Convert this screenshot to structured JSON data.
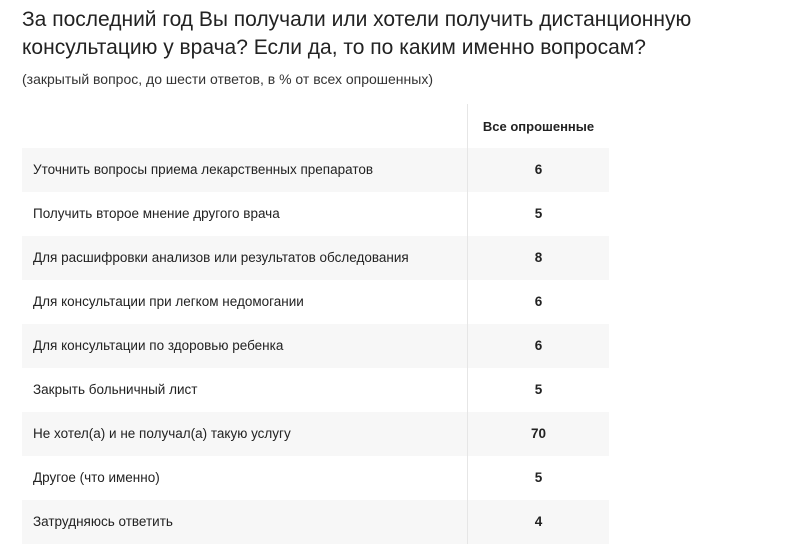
{
  "title": "За последний год Вы получали или хотели получить дистанционную консультацию у врача? Если да, то по каким именно вопросам?",
  "subtitle": "(закрытый вопрос, до шести ответов, в % от всех опрошенных)",
  "table": {
    "column_header": "Все опрошенные",
    "rows": [
      {
        "label": "Уточнить вопросы приема лекарственных препаратов",
        "value": "6"
      },
      {
        "label": "Получить второе мнение другого врача",
        "value": "5"
      },
      {
        "label": "Для расшифровки анализов или результатов обследования",
        "value": "8"
      },
      {
        "label": "Для консультации при легком недомогании",
        "value": "6"
      },
      {
        "label": "Для консультации по здоровью ребенка",
        "value": "6"
      },
      {
        "label": "Закрыть больничный лист",
        "value": "5"
      },
      {
        "label": "Не хотел(а) и не получал(а) такую услугу",
        "value": "70"
      },
      {
        "label": "Другое (что именно)",
        "value": "5"
      },
      {
        "label": "Затрудняюсь ответить",
        "value": "4"
      }
    ]
  }
}
